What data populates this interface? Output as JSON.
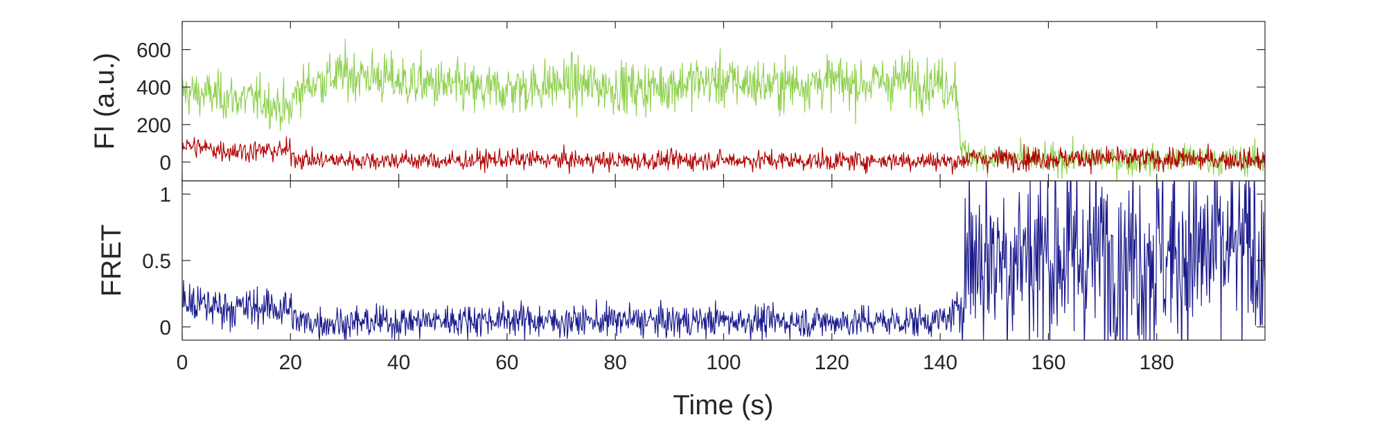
{
  "chart_data": [
    {
      "type": "line",
      "panel": "top",
      "xlabel": "",
      "ylabel": "FI (a.u.)",
      "xlim": [
        0,
        200
      ],
      "ylim": [
        -100,
        750
      ],
      "yticks": [
        0,
        200,
        400,
        600
      ],
      "ytick_labels": [
        "0",
        "200",
        "400",
        "600"
      ],
      "grid": false,
      "series": [
        {
          "key": "acceptor",
          "color": "#8fd14f",
          "x": [
            0,
            5,
            10,
            15,
            20,
            21,
            25,
            30,
            35,
            40,
            45,
            50,
            55,
            60,
            65,
            70,
            75,
            80,
            85,
            90,
            95,
            100,
            105,
            110,
            115,
            120,
            125,
            130,
            135,
            140,
            143,
            144,
            145,
            150,
            155,
            160,
            165,
            170,
            175,
            180,
            185,
            190,
            195,
            200
          ],
          "y": [
            370,
            360,
            340,
            330,
            270,
            380,
            430,
            470,
            460,
            430,
            420,
            400,
            380,
            390,
            400,
            420,
            410,
            400,
            390,
            410,
            430,
            430,
            420,
            410,
            420,
            430,
            420,
            430,
            440,
            420,
            410,
            60,
            30,
            20,
            20,
            10,
            20,
            20,
            10,
            10,
            20,
            10,
            10,
            10
          ],
          "noise": [
            70,
            70,
            70,
            70,
            70,
            70,
            75,
            80,
            80,
            80,
            80,
            80,
            80,
            80,
            80,
            80,
            80,
            80,
            80,
            80,
            80,
            80,
            80,
            80,
            80,
            80,
            80,
            80,
            80,
            80,
            80,
            50,
            45,
            45,
            45,
            45,
            45,
            45,
            45,
            45,
            45,
            45,
            45,
            45
          ]
        },
        {
          "key": "donor",
          "color": "#b00000",
          "x": [
            0,
            5,
            10,
            15,
            20,
            21,
            25,
            30,
            40,
            50,
            60,
            70,
            80,
            90,
            100,
            110,
            120,
            130,
            140,
            143,
            145,
            150,
            160,
            170,
            180,
            190,
            200
          ],
          "y": [
            90,
            70,
            60,
            60,
            60,
            20,
            10,
            10,
            10,
            5,
            15,
            10,
            5,
            10,
            10,
            10,
            5,
            10,
            5,
            0,
            20,
            20,
            20,
            20,
            15,
            15,
            10
          ],
          "noise": [
            35,
            35,
            35,
            35,
            35,
            32,
            30,
            30,
            30,
            30,
            30,
            30,
            30,
            30,
            30,
            30,
            30,
            30,
            30,
            30,
            35,
            35,
            35,
            35,
            35,
            35,
            35
          ]
        }
      ]
    },
    {
      "type": "line",
      "panel": "bottom",
      "xlabel": "Time (s)",
      "ylabel": "FRET",
      "xlim": [
        0,
        200
      ],
      "ylim": [
        -0.1,
        1.1
      ],
      "xticks": [
        0,
        20,
        40,
        60,
        80,
        100,
        120,
        140,
        160,
        180
      ],
      "xtick_labels": [
        "0",
        "20",
        "40",
        "60",
        "80",
        "100",
        "120",
        "140",
        "160",
        "180"
      ],
      "yticks": [
        0,
        0.5,
        1
      ],
      "ytick_labels": [
        "0",
        "0.5",
        "1"
      ],
      "grid": false,
      "series": [
        {
          "key": "fret",
          "color": "#1a1a8c",
          "x": [
            0,
            5,
            10,
            15,
            20,
            21,
            30,
            40,
            50,
            60,
            70,
            80,
            90,
            100,
            110,
            120,
            130,
            140,
            143,
            145,
            150,
            160,
            170,
            180,
            190,
            200
          ],
          "y": [
            0.18,
            0.16,
            0.14,
            0.15,
            0.14,
            0.04,
            0.03,
            0.04,
            0.05,
            0.06,
            0.04,
            0.05,
            0.04,
            0.05,
            0.04,
            0.04,
            0.04,
            0.05,
            0.1,
            0.55,
            0.55,
            0.55,
            0.55,
            0.55,
            0.55,
            0.55
          ],
          "noise": [
            0.09,
            0.09,
            0.09,
            0.09,
            0.09,
            0.07,
            0.07,
            0.07,
            0.07,
            0.07,
            0.07,
            0.07,
            0.07,
            0.07,
            0.07,
            0.07,
            0.07,
            0.07,
            0.08,
            0.45,
            0.45,
            0.45,
            0.45,
            0.45,
            0.45,
            0.45
          ]
        }
      ]
    }
  ]
}
